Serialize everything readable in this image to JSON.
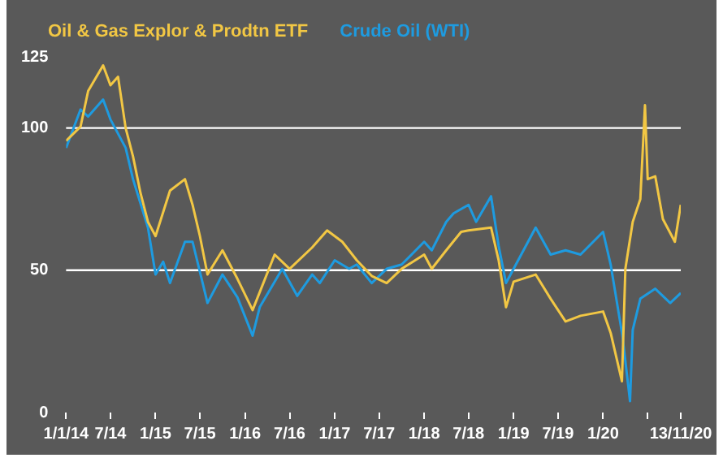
{
  "chart_data": {
    "type": "line",
    "legend": "top left",
    "grid": false,
    "marker": "none",
    "line_style": "solid",
    "xlim": [
      "2014-01-01",
      "2020-11-13"
    ],
    "xticks": [
      {
        "value": "2014-01-01",
        "label": "1/1/14"
      },
      {
        "value": "2014-07-01",
        "label": "7/14"
      },
      {
        "value": "2015-01-01",
        "label": "1/15"
      },
      {
        "value": "2015-07-01",
        "label": "7/15"
      },
      {
        "value": "2016-01-01",
        "label": "1/16"
      },
      {
        "value": "2016-07-01",
        "label": "7/16"
      },
      {
        "value": "2017-01-01",
        "label": "1/17"
      },
      {
        "value": "2017-07-01",
        "label": "7/17"
      },
      {
        "value": "2018-01-01",
        "label": "1/18"
      },
      {
        "value": "2018-07-01",
        "label": "7/18"
      },
      {
        "value": "2019-01-01",
        "label": "1/19"
      },
      {
        "value": "2019-07-01",
        "label": "7/19"
      },
      {
        "value": "2020-01-01",
        "label": "1/20"
      },
      {
        "value": "2020-07-01",
        "label": null
      },
      {
        "value": "2020-11-13",
        "label": "13/11/20"
      }
    ],
    "ylim": [
      0,
      125
    ],
    "yticks": [
      0,
      50,
      100,
      125
    ],
    "ref_lines": [
      {
        "axis": "y",
        "value": 50,
        "color": "#ffffff"
      },
      {
        "axis": "y",
        "value": 100,
        "color": "#ffffff"
      }
    ],
    "series": [
      {
        "name": "Oil & Gas Explor & Prodtn ETF",
        "color": "#f2c744",
        "x": [
          "2014-01-01",
          "2014-03",
          "2014-04",
          "2014-06",
          "2014-07",
          "2014-08",
          "2014-09",
          "2014-10",
          "2014-11",
          "2014-12",
          "2015-01",
          "2015-03",
          "2015-05",
          "2015-06",
          "2015-07",
          "2015-08",
          "2015-10",
          "2015-12",
          "2016-02",
          "2016-05",
          "2016-07",
          "2016-10",
          "2016-12",
          "2017-02",
          "2017-04",
          "2017-06",
          "2017-08",
          "2017-10",
          "2018-01",
          "2018-02",
          "2018-04",
          "2018-06",
          "2018-07",
          "2018-10",
          "2018-11",
          "2018-12",
          "2019-01",
          "2019-04",
          "2019-06",
          "2019-08",
          "2019-10",
          "2020-01",
          "2020-02",
          "2020-03-18",
          "2020-04",
          "2020-05",
          "2020-06-01",
          "2020-06-20",
          "2020-07",
          "2020-08",
          "2020-09",
          "2020-10-20",
          "2020-11-13"
        ],
        "values": [
          95.5,
          100.5,
          113,
          122,
          115,
          118,
          100,
          90,
          77,
          67,
          62,
          78,
          82,
          73,
          62,
          48.5,
          57,
          47,
          36,
          55.5,
          50.5,
          58,
          64,
          60,
          53.5,
          48,
          45.5,
          50.5,
          55.5,
          50.5,
          57,
          63.5,
          64,
          65,
          53.5,
          37,
          46,
          48.5,
          40,
          32,
          34,
          35.5,
          28,
          11,
          50.5,
          67,
          75,
          108,
          82,
          83,
          68,
          60,
          73
        ]
      },
      {
        "name": "Crude Oil (WTI)",
        "color": "#1e9be0",
        "x": [
          "2014-01-01",
          "2014-03",
          "2014-04",
          "2014-06",
          "2014-07",
          "2014-09",
          "2014-10",
          "2014-12",
          "2015-01",
          "2015-02",
          "2015-03",
          "2015-05",
          "2015-06",
          "2015-08",
          "2015-10",
          "2015-12",
          "2016-02",
          "2016-03",
          "2016-06",
          "2016-08",
          "2016-10",
          "2016-11",
          "2017-01",
          "2017-03",
          "2017-04",
          "2017-06",
          "2017-08",
          "2017-10",
          "2018-01",
          "2018-02",
          "2018-04",
          "2018-05",
          "2018-07",
          "2018-08",
          "2018-10",
          "2018-11",
          "2018-12",
          "2019-02",
          "2019-04",
          "2019-06",
          "2019-08",
          "2019-10",
          "2020-01",
          "2020-02",
          "2020-03-20",
          "2020-04-20",
          "2020-05",
          "2020-06",
          "2020-08",
          "2020-10",
          "2020-11-13"
        ],
        "values": [
          93,
          106.5,
          104,
          110,
          103,
          93,
          82,
          65,
          48.5,
          53,
          45.5,
          60,
          60,
          38.5,
          48.5,
          40.5,
          27,
          37,
          50.5,
          41,
          48.5,
          45.5,
          53.5,
          50.5,
          52,
          45.5,
          50.5,
          52,
          60,
          57,
          67,
          70,
          73,
          67,
          76,
          58.5,
          45.5,
          55.5,
          65,
          55.5,
          57,
          55.5,
          63.5,
          52,
          27,
          4,
          29,
          40,
          43.5,
          38.5,
          42
        ]
      }
    ]
  }
}
